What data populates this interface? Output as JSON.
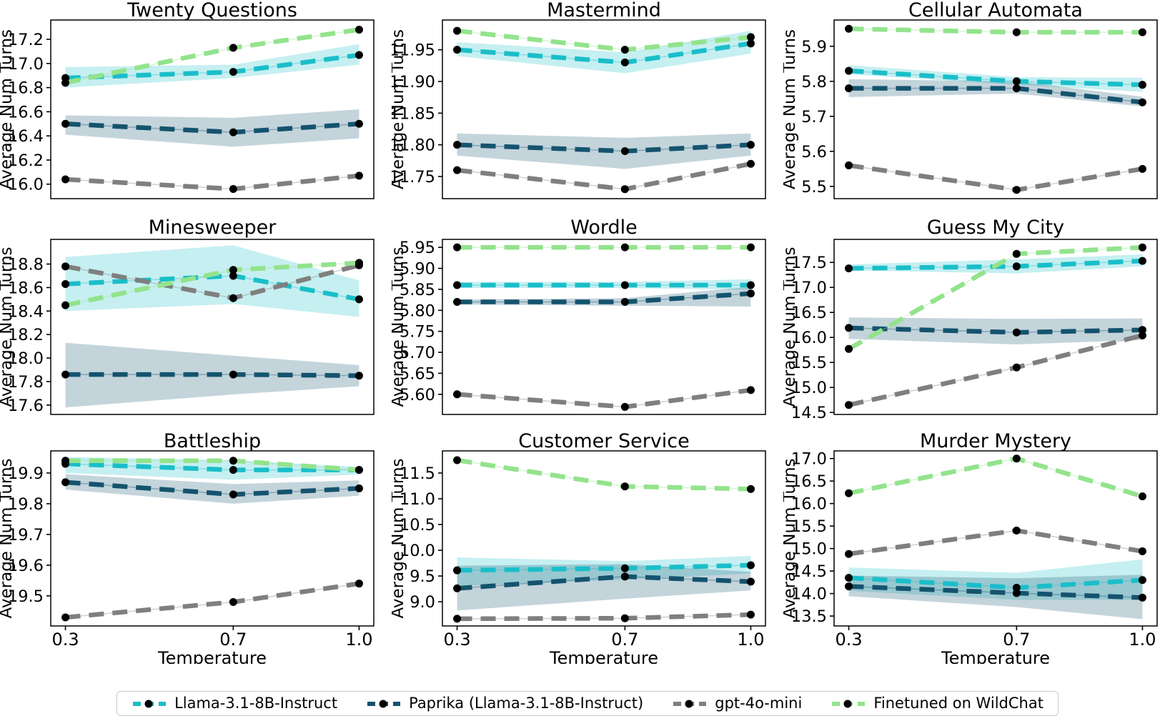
{
  "figure": {
    "xlabel": "Temperature",
    "ylabel": "Average Num Turns",
    "x_ticks": [
      0.3,
      0.7,
      1.0
    ],
    "x_tick_labels": [
      "0.3",
      "0.7",
      "1.0"
    ],
    "xlim": [
      0.265,
      1.035
    ]
  },
  "series_meta": [
    {
      "label": "Llama-3.1-8B-Instruct",
      "color": "#1abec9",
      "band_color": "rgba(26,190,201,0.25)"
    },
    {
      "label": "Paprika (Llama-3.1-8B-Instruct)",
      "color": "#14536e",
      "band_color": "rgba(20,83,110,0.25)"
    },
    {
      "label": "gpt-4o-mini",
      "color": "#7f7f7f",
      "band_color": null
    },
    {
      "label": "Finetuned on WildChat",
      "color": "#93e38c",
      "band_color": null
    }
  ],
  "chart_data": [
    {
      "type": "line",
      "title": "Twenty Questions",
      "x": [
        0.3,
        0.7,
        1.0
      ],
      "ylim": [
        15.88,
        17.36
      ],
      "yticks": [
        16.0,
        16.2,
        16.4,
        16.6,
        16.8,
        17.0,
        17.2
      ],
      "ytick_labels": [
        "16.0",
        "16.2",
        "16.4",
        "16.6",
        "16.8",
        "17.0",
        "17.2"
      ],
      "series": [
        {
          "name": "Llama-3.1-8B-Instruct",
          "values": [
            16.88,
            16.93,
            17.07
          ],
          "band_low": [
            16.8,
            16.88,
            16.99
          ],
          "band_high": [
            16.97,
            16.99,
            17.16
          ]
        },
        {
          "name": "Paprika (Llama-3.1-8B-Instruct)",
          "values": [
            16.5,
            16.43,
            16.5
          ],
          "band_low": [
            16.41,
            16.31,
            16.38
          ],
          "band_high": [
            16.57,
            16.55,
            16.62
          ]
        },
        {
          "name": "gpt-4o-mini",
          "values": [
            16.04,
            15.96,
            16.07
          ]
        },
        {
          "name": "Finetuned on WildChat",
          "values": [
            16.84,
            17.13,
            17.28
          ]
        }
      ]
    },
    {
      "type": "line",
      "title": "Mastermind",
      "x": [
        0.3,
        0.7,
        1.0
      ],
      "ylim": [
        11.715,
        11.997
      ],
      "yticks": [
        11.75,
        11.8,
        11.85,
        11.9,
        11.95
      ],
      "ytick_labels": [
        "11.75",
        "11.80",
        "11.85",
        "11.90",
        "11.95"
      ],
      "series": [
        {
          "name": "Llama-3.1-8B-Instruct",
          "values": [
            11.95,
            11.93,
            11.96
          ],
          "band_low": [
            11.94,
            11.913,
            11.944
          ],
          "band_high": [
            11.962,
            11.946,
            11.98
          ]
        },
        {
          "name": "Paprika (Llama-3.1-8B-Instruct)",
          "values": [
            11.8,
            11.79,
            11.8
          ],
          "band_low": [
            11.783,
            11.762,
            11.783
          ],
          "band_high": [
            11.818,
            11.811,
            11.818
          ]
        },
        {
          "name": "gpt-4o-mini",
          "values": [
            11.76,
            11.73,
            11.77
          ]
        },
        {
          "name": "Finetuned on WildChat",
          "values": [
            11.98,
            11.95,
            11.97
          ]
        }
      ]
    },
    {
      "type": "line",
      "title": "Cellular Automata",
      "x": [
        0.3,
        0.7,
        1.0
      ],
      "ylim": [
        5.465,
        5.975
      ],
      "yticks": [
        5.5,
        5.6,
        5.7,
        5.8,
        5.9
      ],
      "ytick_labels": [
        "5.5",
        "5.6",
        "5.7",
        "5.8",
        "5.9"
      ],
      "series": [
        {
          "name": "Llama-3.1-8B-Instruct",
          "values": [
            5.83,
            5.8,
            5.79
          ],
          "band_low": [
            5.82,
            5.79,
            5.77
          ],
          "band_high": [
            5.846,
            5.812,
            5.81
          ]
        },
        {
          "name": "Paprika (Llama-3.1-8B-Instruct)",
          "values": [
            5.78,
            5.78,
            5.74
          ],
          "band_low": [
            5.755,
            5.765,
            5.728
          ],
          "band_high": [
            5.806,
            5.8,
            5.756
          ]
        },
        {
          "name": "gpt-4o-mini",
          "values": [
            5.56,
            5.49,
            5.55
          ]
        },
        {
          "name": "Finetuned on WildChat",
          "values": [
            5.95,
            5.94,
            5.94
          ]
        }
      ]
    },
    {
      "type": "line",
      "title": "Minesweeper",
      "x": [
        0.3,
        0.7,
        1.0
      ],
      "ylim": [
        17.52,
        19.01
      ],
      "yticks": [
        17.6,
        17.8,
        18.0,
        18.2,
        18.4,
        18.6,
        18.8
      ],
      "ytick_labels": [
        "17.6",
        "17.8",
        "18.0",
        "18.2",
        "18.4",
        "18.6",
        "18.8"
      ],
      "series": [
        {
          "name": "Llama-3.1-8B-Instruct",
          "values": [
            18.63,
            18.7,
            18.5
          ],
          "band_low": [
            18.4,
            18.46,
            18.35
          ],
          "band_high": [
            18.86,
            18.96,
            18.66
          ]
        },
        {
          "name": "Paprika (Llama-3.1-8B-Instruct)",
          "values": [
            17.86,
            17.86,
            17.85
          ],
          "band_low": [
            17.58,
            17.69,
            17.76
          ],
          "band_high": [
            18.13,
            18.02,
            17.94
          ]
        },
        {
          "name": "gpt-4o-mini",
          "values": [
            18.78,
            18.51,
            18.79
          ]
        },
        {
          "name": "Finetuned on WildChat",
          "values": [
            18.45,
            18.75,
            18.81
          ]
        }
      ]
    },
    {
      "type": "line",
      "title": "Wordle",
      "x": [
        0.3,
        0.7,
        1.0
      ],
      "ylim": [
        5.552,
        5.969
      ],
      "yticks": [
        5.6,
        5.65,
        5.7,
        5.75,
        5.8,
        5.85,
        5.9,
        5.95
      ],
      "ytick_labels": [
        "5.60",
        "5.65",
        "5.70",
        "5.75",
        "5.80",
        "5.85",
        "5.90",
        "5.95"
      ],
      "series": [
        {
          "name": "Llama-3.1-8B-Instruct",
          "values": [
            5.86,
            5.86,
            5.86
          ],
          "band_low": [
            5.853,
            5.853,
            5.849
          ],
          "band_high": [
            5.868,
            5.868,
            5.874
          ]
        },
        {
          "name": "Paprika (Llama-3.1-8B-Instruct)",
          "values": [
            5.82,
            5.82,
            5.84
          ],
          "band_low": [
            5.814,
            5.811,
            5.809
          ],
          "band_high": [
            5.826,
            5.829,
            5.856
          ]
        },
        {
          "name": "gpt-4o-mini",
          "values": [
            5.6,
            5.57,
            5.61
          ]
        },
        {
          "name": "Finetuned on WildChat",
          "values": [
            5.95,
            5.95,
            5.95
          ]
        }
      ]
    },
    {
      "type": "line",
      "title": "Guess My City",
      "x": [
        0.3,
        0.7,
        1.0
      ],
      "ylim": [
        14.46,
        17.96
      ],
      "yticks": [
        14.5,
        15.0,
        15.5,
        16.0,
        16.5,
        17.0,
        17.5
      ],
      "ytick_labels": [
        "14.5",
        "15.0",
        "15.5",
        "16.0",
        "16.5",
        "17.0",
        "17.5"
      ],
      "series": [
        {
          "name": "Llama-3.1-8B-Instruct",
          "values": [
            17.38,
            17.42,
            17.53
          ],
          "band_low": [
            17.34,
            17.28,
            17.42
          ],
          "band_high": [
            17.46,
            17.56,
            17.66
          ]
        },
        {
          "name": "Paprika (Llama-3.1-8B-Instruct)",
          "values": [
            16.19,
            16.1,
            16.15
          ],
          "band_low": [
            15.97,
            15.86,
            15.95
          ],
          "band_high": [
            16.4,
            16.37,
            16.38
          ]
        },
        {
          "name": "gpt-4o-mini",
          "values": [
            14.65,
            15.4,
            16.04
          ]
        },
        {
          "name": "Finetuned on WildChat",
          "values": [
            15.77,
            17.67,
            17.8
          ]
        }
      ]
    },
    {
      "type": "line",
      "title": "Battleship",
      "x": [
        0.3,
        0.7,
        1.0
      ],
      "ylim": [
        19.402,
        19.972
      ],
      "yticks": [
        19.5,
        19.6,
        19.7,
        19.8,
        19.9
      ],
      "ytick_labels": [
        "19.5",
        "19.6",
        "19.7",
        "19.8",
        "19.9"
      ],
      "series": [
        {
          "name": "Llama-3.1-8B-Instruct",
          "values": [
            19.93,
            19.91,
            19.91
          ],
          "band_low": [
            19.9,
            19.878,
            19.895
          ],
          "band_high": [
            19.952,
            19.942,
            19.92
          ]
        },
        {
          "name": "Paprika (Llama-3.1-8B-Instruct)",
          "values": [
            19.87,
            19.83,
            19.85
          ],
          "band_low": [
            19.846,
            19.8,
            19.826
          ],
          "band_high": [
            19.896,
            19.864,
            19.876
          ]
        },
        {
          "name": "gpt-4o-mini",
          "values": [
            19.43,
            19.48,
            19.54
          ]
        },
        {
          "name": "Finetuned on WildChat",
          "values": [
            19.94,
            19.94,
            19.91
          ]
        }
      ]
    },
    {
      "type": "line",
      "title": "Customer Service",
      "x": [
        0.3,
        0.7,
        1.0
      ],
      "ylim": [
        8.53,
        11.93
      ],
      "yticks": [
        9.0,
        9.5,
        10.0,
        10.5,
        11.0,
        11.5
      ],
      "ytick_labels": [
        "9.0",
        "9.5",
        "10.0",
        "10.5",
        "11.0",
        "11.5"
      ],
      "series": [
        {
          "name": "Llama-3.1-8B-Instruct",
          "values": [
            9.61,
            9.65,
            9.71
          ],
          "band_low": [
            9.31,
            9.43,
            9.55
          ],
          "band_high": [
            9.86,
            9.79,
            9.89
          ]
        },
        {
          "name": "Paprika (Llama-3.1-8B-Instruct)",
          "values": [
            9.26,
            9.49,
            9.39
          ],
          "band_low": [
            8.83,
            9.06,
            9.22
          ],
          "band_high": [
            9.7,
            9.73,
            9.58
          ]
        },
        {
          "name": "gpt-4o-mini",
          "values": [
            8.67,
            8.68,
            8.75
          ]
        },
        {
          "name": "Finetuned on WildChat",
          "values": [
            11.75,
            11.24,
            11.19
          ]
        }
      ]
    },
    {
      "type": "line",
      "title": "Murder Mystery",
      "x": [
        0.3,
        0.7,
        1.0
      ],
      "ylim": [
        13.28,
        17.17
      ],
      "yticks": [
        13.5,
        14.0,
        14.5,
        15.0,
        15.5,
        16.0,
        16.5,
        17.0
      ],
      "ytick_labels": [
        "13.5",
        "14.0",
        "14.5",
        "15.0",
        "15.5",
        "16.0",
        "16.5",
        "17.0"
      ],
      "series": [
        {
          "name": "Llama-3.1-8B-Instruct",
          "values": [
            14.35,
            14.13,
            14.3
          ],
          "band_low": [
            14.06,
            13.86,
            13.86
          ],
          "band_high": [
            14.58,
            14.46,
            14.76
          ]
        },
        {
          "name": "Paprika (Llama-3.1-8B-Instruct)",
          "values": [
            14.16,
            14.01,
            13.91
          ],
          "band_low": [
            13.94,
            13.7,
            13.43
          ],
          "band_high": [
            14.4,
            14.34,
            14.42
          ]
        },
        {
          "name": "gpt-4o-mini",
          "values": [
            14.88,
            15.4,
            14.94
          ]
        },
        {
          "name": "Finetuned on WildChat",
          "values": [
            16.23,
            17.0,
            16.16
          ]
        }
      ]
    }
  ]
}
